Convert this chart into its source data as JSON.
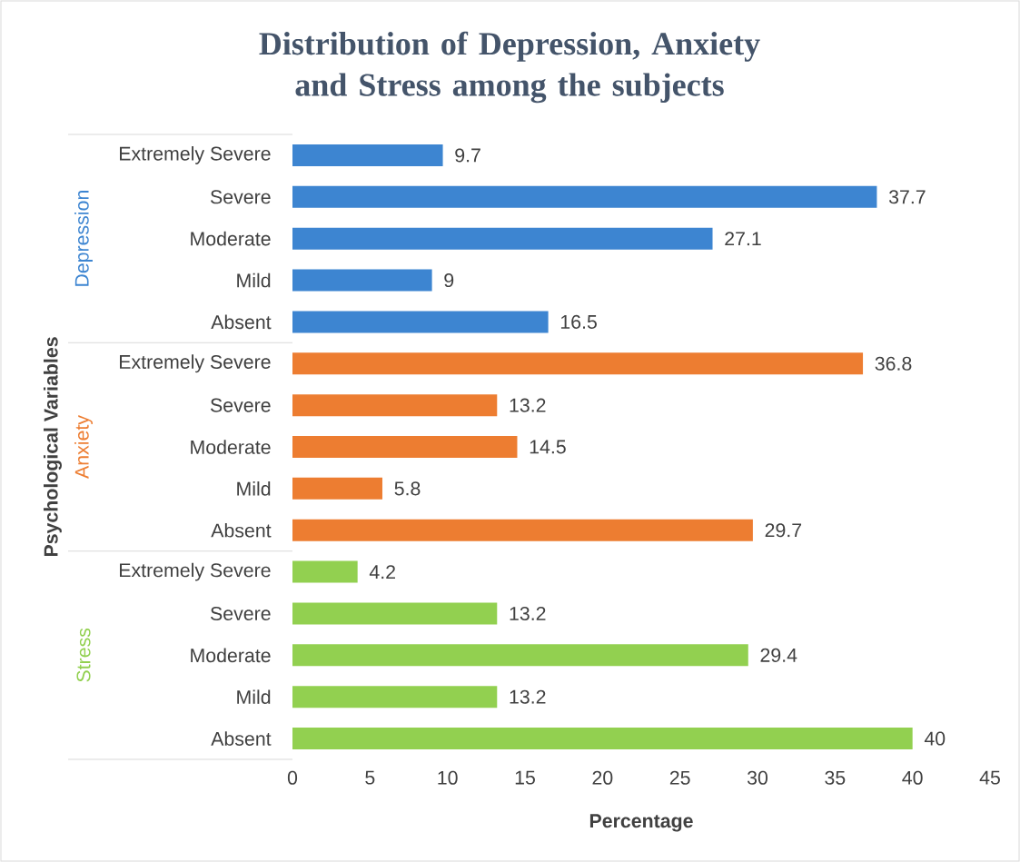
{
  "chart_data": {
    "type": "bar",
    "orientation": "horizontal",
    "title": "Distribution of Depression, Anxiety and Stress among the subjects",
    "xlabel": "Percentage",
    "ylabel": "Psychological Variables",
    "categories": [
      "Extremely Severe",
      "Severe",
      "Moderate",
      "Mild",
      "Absent",
      "Extremely Severe",
      "Severe",
      "Moderate",
      "Mild",
      "Absent",
      "Extremely Severe",
      "Severe",
      "Moderate",
      "Mild",
      "Absent"
    ],
    "series": [
      {
        "name": "Depression",
        "color": "#3d85d1",
        "values": [
          9.7,
          37.7,
          27.1,
          9,
          16.5,
          null,
          null,
          null,
          null,
          null,
          null,
          null,
          null,
          null,
          null
        ]
      },
      {
        "name": "Anxiety",
        "color": "#ed7d31",
        "values": [
          null,
          null,
          null,
          null,
          null,
          36.8,
          13.2,
          14.5,
          5.8,
          29.7,
          null,
          null,
          null,
          null,
          null
        ]
      },
      {
        "name": "Stress",
        "color": "#92d050",
        "values": [
          null,
          null,
          null,
          null,
          null,
          null,
          null,
          null,
          null,
          null,
          4.2,
          13.2,
          29.4,
          13.2,
          40
        ]
      }
    ],
    "xlim": [
      0,
      45
    ],
    "xticks": [
      0,
      5,
      10,
      15,
      20,
      25,
      30,
      35,
      40,
      45
    ],
    "data_labels": true
  }
}
